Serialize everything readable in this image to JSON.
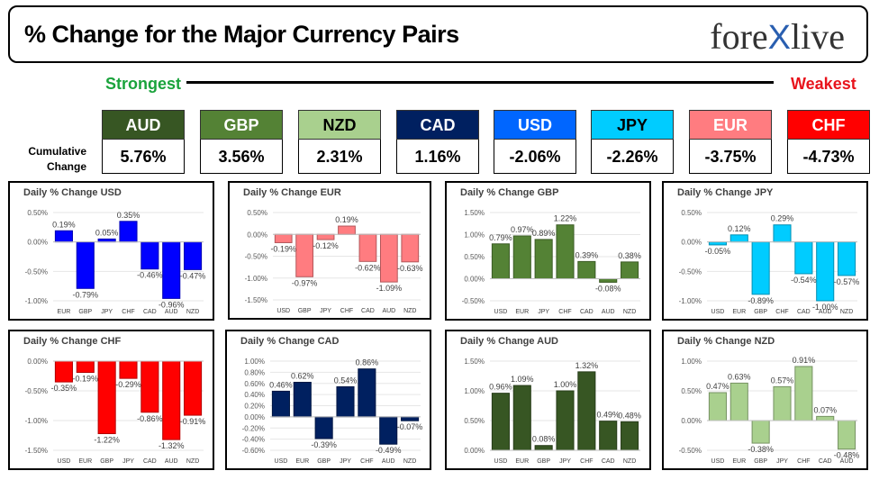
{
  "header": {
    "title": "% Change for the Major Currency Pairs",
    "logo_left": "fore",
    "logo_mark": "X",
    "logo_right": "live"
  },
  "ranking": {
    "strongest_label": "Strongest",
    "weakest_label": "Weakest",
    "cumulative_label": "Cumulative Change",
    "tiles": [
      {
        "currency": "AUD",
        "value": "5.76%",
        "color": "#375623",
        "text_color": "#ffffff"
      },
      {
        "currency": "GBP",
        "value": "3.56%",
        "color": "#548235",
        "text_color": "#ffffff"
      },
      {
        "currency": "NZD",
        "value": "2.31%",
        "color": "#a9d08e",
        "text_color": "#000000"
      },
      {
        "currency": "CAD",
        "value": "1.16%",
        "color": "#002060",
        "text_color": "#ffffff"
      },
      {
        "currency": "USD",
        "value": "-2.06%",
        "color": "#0066ff",
        "text_color": "#ffffff"
      },
      {
        "currency": "JPY",
        "value": "-2.26%",
        "color": "#00ccff",
        "text_color": "#000000"
      },
      {
        "currency": "EUR",
        "value": "-3.75%",
        "color": "#ff7c80",
        "text_color": "#ffffff"
      },
      {
        "currency": "CHF",
        "value": "-4.73%",
        "color": "#ff0000",
        "text_color": "#ffffff"
      }
    ]
  },
  "chart_data": [
    {
      "type": "bar",
      "title": "Daily % Change USD",
      "color": "#0000ff",
      "categories": [
        "EUR",
        "GBP",
        "JPY",
        "CHF",
        "CAD",
        "AUD",
        "NZD"
      ],
      "values": [
        0.19,
        -0.79,
        0.05,
        0.35,
        -0.46,
        -0.96,
        -0.47
      ],
      "labels": [
        "0.19%",
        "-0.79%",
        "0.05%",
        "0.35%",
        "-0.46%",
        "-0.96%",
        "-0.47%"
      ],
      "ylim": [
        -1.0,
        0.5
      ],
      "ticks": [
        0.5,
        0.0,
        -0.5,
        -1.0
      ],
      "tick_labels": [
        "0.50%",
        "0.00%",
        "-0.50%",
        "-1.00%"
      ]
    },
    {
      "type": "bar",
      "title": "Daily % Change EUR",
      "color": "#ff7c80",
      "categories": [
        "USD",
        "GBP",
        "JPY",
        "CHF",
        "CAD",
        "AUD",
        "NZD"
      ],
      "values": [
        -0.19,
        -0.97,
        -0.12,
        0.19,
        -0.62,
        -1.09,
        -0.63
      ],
      "labels": [
        "-0.19%",
        "-0.97%",
        "-0.12%",
        "0.19%",
        "-0.62%",
        "-1.09%",
        "-0.63%"
      ],
      "ylim": [
        -1.5,
        0.5
      ],
      "ticks": [
        0.5,
        0.0,
        -0.5,
        -1.0,
        -1.5
      ],
      "tick_labels": [
        "0.50%",
        "0.00%",
        "-0.50%",
        "-1.00%",
        "-1.50%"
      ]
    },
    {
      "type": "bar",
      "title": "Daily % Change GBP",
      "color": "#548235",
      "categories": [
        "USD",
        "EUR",
        "JPY",
        "CHF",
        "CAD",
        "AUD",
        "NZD"
      ],
      "values": [
        0.79,
        0.97,
        0.89,
        1.22,
        0.39,
        -0.08,
        0.38
      ],
      "labels": [
        "0.79%",
        "0.97%",
        "0.89%",
        "1.22%",
        "0.39%",
        "-0.08%",
        "0.38%"
      ],
      "ylim": [
        -0.5,
        1.5
      ],
      "ticks": [
        1.5,
        1.0,
        0.5,
        0.0,
        -0.5
      ],
      "tick_labels": [
        "1.50%",
        "1.00%",
        "0.50%",
        "0.00%",
        "-0.50%"
      ]
    },
    {
      "type": "bar",
      "title": "Daily % Change JPY",
      "color": "#00ccff",
      "categories": [
        "USD",
        "EUR",
        "GBP",
        "CHF",
        "CAD",
        "AUD",
        "NZD"
      ],
      "values": [
        -0.05,
        0.12,
        -0.89,
        0.29,
        -0.54,
        -1.0,
        -0.57
      ],
      "labels": [
        "-0.05%",
        "0.12%",
        "-0.89%",
        "0.29%",
        "-0.54%",
        "-1.00%",
        "-0.57%"
      ],
      "ylim": [
        -1.0,
        0.5
      ],
      "ticks": [
        0.5,
        0.0,
        -0.5,
        -1.0
      ],
      "tick_labels": [
        "0.50%",
        "0.00%",
        "-0.50%",
        "-1.00%"
      ]
    },
    {
      "type": "bar",
      "title": "Daily % Change CHF",
      "color": "#ff0000",
      "categories": [
        "USD",
        "EUR",
        "GBP",
        "JPY",
        "CAD",
        "AUD",
        "NZD"
      ],
      "values": [
        -0.35,
        -0.19,
        -1.22,
        -0.29,
        -0.86,
        -1.32,
        -0.91
      ],
      "labels": [
        "-0.35%",
        "-0.19%",
        "-1.22%",
        "-0.29%",
        "-0.86%",
        "-1.32%",
        "-0.91%"
      ],
      "ylim": [
        -1.5,
        0.0
      ],
      "ticks": [
        0.0,
        -0.5,
        -1.0,
        -1.5
      ],
      "tick_labels": [
        "0.00%",
        "-0.50%",
        "-1.00%",
        "-1.50%"
      ]
    },
    {
      "type": "bar",
      "title": "Daily % Change CAD",
      "color": "#002060",
      "categories": [
        "USD",
        "EUR",
        "GBP",
        "JPY",
        "CHF",
        "AUD",
        "NZD"
      ],
      "values": [
        0.46,
        0.62,
        -0.39,
        0.54,
        0.86,
        -0.49,
        -0.07
      ],
      "labels": [
        "0.46%",
        "0.62%",
        "-0.39%",
        "0.54%",
        "0.86%",
        "-0.49%",
        "-0.07%"
      ],
      "ylim": [
        -0.6,
        1.0
      ],
      "ticks": [
        1.0,
        0.8,
        0.6,
        0.4,
        0.2,
        0.0,
        -0.2,
        -0.4,
        -0.6
      ],
      "tick_labels": [
        "1.00%",
        "0.80%",
        "0.60%",
        "0.40%",
        "0.20%",
        "0.00%",
        "-0.20%",
        "-0.40%",
        "-0.60%"
      ]
    },
    {
      "type": "bar",
      "title": "Daily % Change AUD",
      "color": "#375623",
      "categories": [
        "USD",
        "EUR",
        "GBP",
        "JPY",
        "CHF",
        "CAD",
        "NZD"
      ],
      "values": [
        0.96,
        1.09,
        0.08,
        1.0,
        1.32,
        0.49,
        0.48
      ],
      "labels": [
        "0.96%",
        "1.09%",
        "0.08%",
        "1.00%",
        "1.32%",
        "0.49%",
        "0.48%"
      ],
      "ylim": [
        0.0,
        1.5
      ],
      "ticks": [
        1.5,
        1.0,
        0.5,
        0.0
      ],
      "tick_labels": [
        "1.50%",
        "1.00%",
        "0.50%",
        "0.00%"
      ]
    },
    {
      "type": "bar",
      "title": "Daily % Change NZD",
      "color": "#a9d08e",
      "categories": [
        "USD",
        "EUR",
        "GBP",
        "JPY",
        "CHF",
        "CAD",
        "AUD"
      ],
      "values": [
        0.47,
        0.63,
        -0.38,
        0.57,
        0.91,
        0.07,
        -0.48
      ],
      "labels": [
        "0.47%",
        "0.63%",
        "-0.38%",
        "0.57%",
        "0.91%",
        "0.07%",
        "-0.48%"
      ],
      "ylim": [
        -0.5,
        1.0
      ],
      "ticks": [
        1.0,
        0.5,
        0.0,
        -0.5
      ],
      "tick_labels": [
        "1.00%",
        "0.50%",
        "0.00%",
        "-0.50%"
      ]
    }
  ]
}
